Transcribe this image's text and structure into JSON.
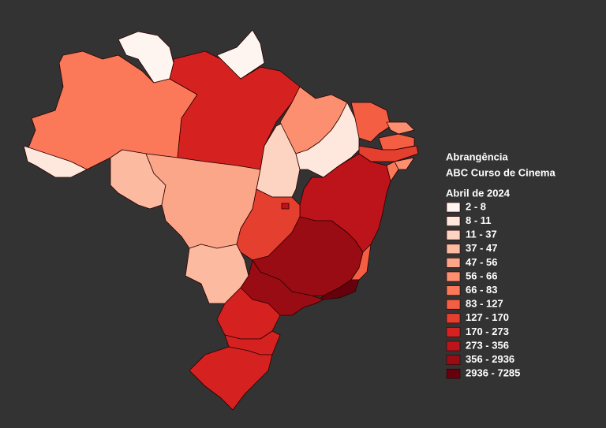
{
  "legend": {
    "title": "Abrangência",
    "subtitle": "ABC Curso de Cinema",
    "period": "Abril de 2024",
    "classes": [
      {
        "label": "2 - 8",
        "color": "#fff5f0"
      },
      {
        "label": "8 - 11",
        "color": "#fee8de"
      },
      {
        "label": "11 - 37",
        "color": "#fdd4c2"
      },
      {
        "label": "37 - 47",
        "color": "#fcbba1"
      },
      {
        "label": "47 - 56",
        "color": "#fca689"
      },
      {
        "label": "56 - 66",
        "color": "#fc8f6f"
      },
      {
        "label": "66 - 83",
        "color": "#fb7858"
      },
      {
        "label": "83 - 127",
        "color": "#f45f44"
      },
      {
        "label": "127 - 170",
        "color": "#e53f30"
      },
      {
        "label": "170 - 273",
        "color": "#d52221"
      },
      {
        "label": "273 - 356",
        "color": "#bc141a"
      },
      {
        "label": "356 - 2936",
        "color": "#9a0c14"
      },
      {
        "label": "2936 - 7285",
        "color": "#67000d"
      }
    ]
  }
}
